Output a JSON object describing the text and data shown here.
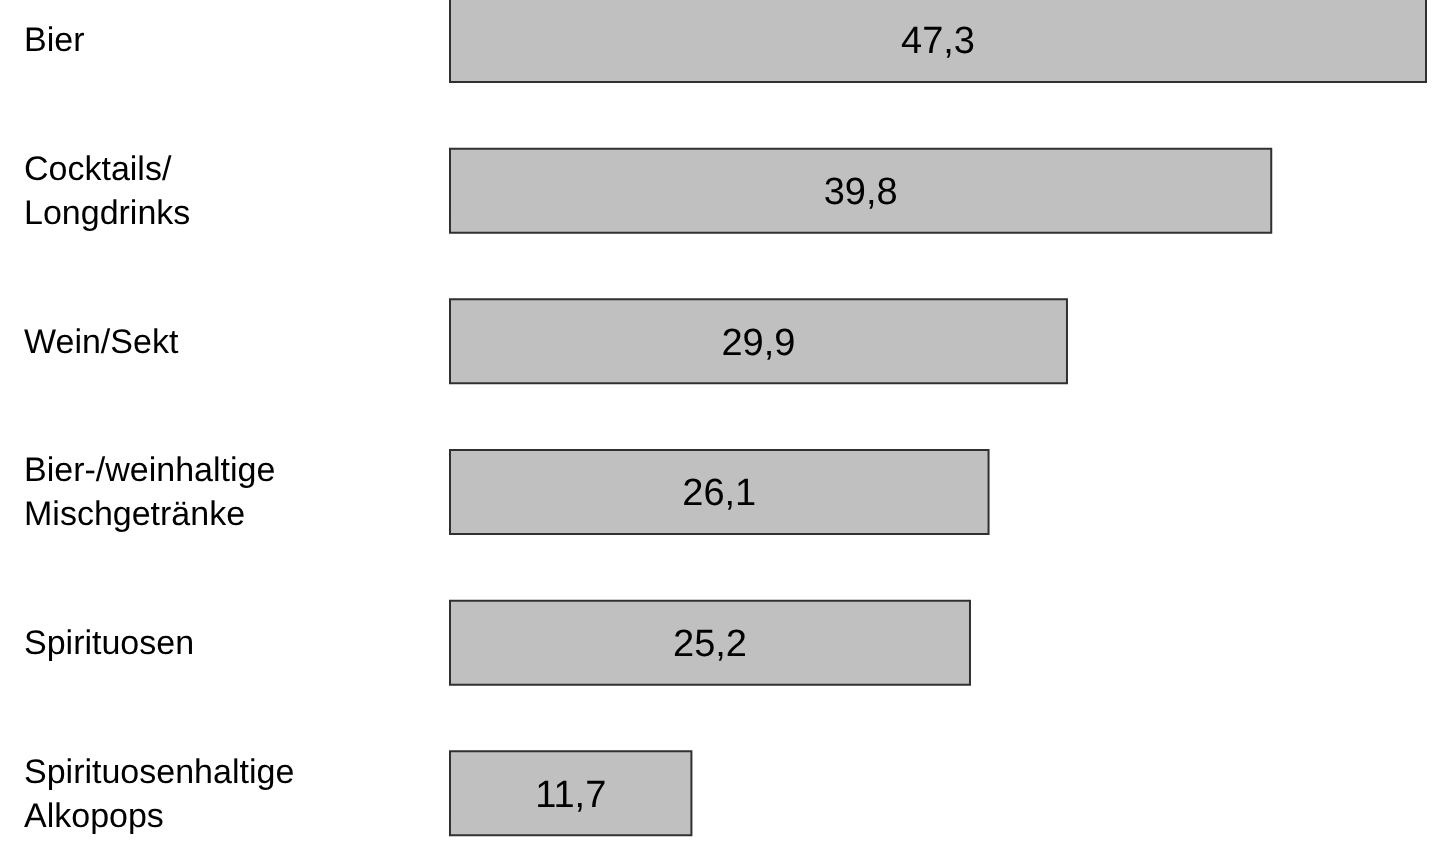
{
  "chart_data": {
    "type": "bar",
    "orientation": "horizontal",
    "categories": [
      "Bier",
      "Cocktails/ Longdrinks",
      "Wein/Sekt",
      "Bier-/weinhaltige Mischgetränke",
      "Spirituosen",
      "Spirituosenhaltige Alkopops"
    ],
    "values": [
      47.3,
      39.8,
      29.9,
      26.1,
      25.2,
      11.7
    ],
    "value_labels": [
      "47,3",
      "39,8",
      "29,9",
      "26,1",
      "25,2",
      "11,7"
    ],
    "color": "#c0c0c0"
  }
}
